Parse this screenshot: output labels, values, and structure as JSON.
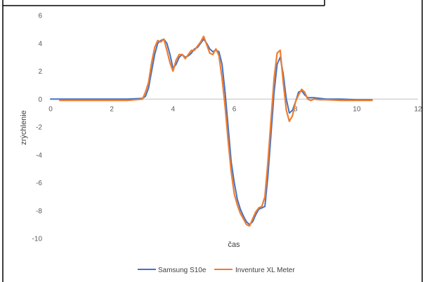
{
  "chart_data": {
    "type": "line",
    "title": "",
    "xlabel": "čas",
    "ylabel": "zrýchlenie",
    "xlim": [
      0,
      12
    ],
    "ylim": [
      -10,
      6
    ],
    "x_ticks": [
      0,
      2,
      4,
      6,
      8,
      10,
      12
    ],
    "y_ticks": [
      6,
      4,
      2,
      0,
      -2,
      -4,
      -6,
      -8,
      -10
    ],
    "grid": false,
    "legend_position": "bottom",
    "colors": {
      "series_1": "#4472c4",
      "series_2": "#ed7d31",
      "axis": "#bfbfbf",
      "frame": "#000000"
    },
    "series": [
      {
        "name": "Samsung S10e",
        "x": [
          0,
          0.5,
          1.0,
          1.5,
          2.0,
          2.5,
          3.0,
          3.1,
          3.2,
          3.3,
          3.4,
          3.5,
          3.6,
          3.7,
          3.8,
          3.9,
          4.0,
          4.1,
          4.2,
          4.3,
          4.4,
          4.5,
          4.6,
          4.7,
          4.8,
          4.9,
          5.0,
          5.1,
          5.2,
          5.3,
          5.4,
          5.5,
          5.6,
          5.7,
          5.8,
          5.9,
          6.0,
          6.1,
          6.2,
          6.3,
          6.4,
          6.5,
          6.6,
          6.7,
          6.8,
          6.9,
          7.0,
          7.1,
          7.2,
          7.3,
          7.4,
          7.5,
          7.6,
          7.7,
          7.8,
          7.9,
          8.0,
          8.1,
          8.2,
          8.3,
          8.4,
          8.5,
          8.6,
          8.8,
          9.0,
          9.5,
          10.0,
          10.5
        ],
        "values": [
          0,
          0,
          0,
          0,
          0,
          0,
          0.05,
          0.2,
          0.8,
          2.0,
          3.2,
          4.0,
          4.2,
          4.3,
          4.0,
          3.2,
          2.2,
          2.5,
          3.0,
          3.2,
          3.0,
          3.1,
          3.3,
          3.6,
          3.7,
          4.0,
          4.3,
          4.0,
          3.6,
          3.4,
          3.5,
          3.4,
          2.5,
          0.5,
          -2.0,
          -4.5,
          -6.0,
          -7.2,
          -7.9,
          -8.4,
          -8.8,
          -9.0,
          -8.8,
          -8.3,
          -7.9,
          -7.8,
          -7.7,
          -5.5,
          -2.5,
          0.5,
          2.5,
          3.0,
          1.8,
          0.0,
          -1.0,
          -0.8,
          -0.2,
          0.5,
          0.6,
          0.3,
          0.1,
          0.1,
          0.1,
          0.05,
          0.0,
          0.0,
          -0.05,
          -0.05
        ]
      },
      {
        "name": "Inventure XL Meter",
        "x": [
          0.3,
          0.5,
          1.0,
          1.5,
          2.0,
          2.5,
          3.0,
          3.1,
          3.2,
          3.3,
          3.4,
          3.5,
          3.6,
          3.7,
          3.8,
          3.9,
          4.0,
          4.1,
          4.2,
          4.3,
          4.4,
          4.5,
          4.6,
          4.7,
          4.8,
          4.9,
          5.0,
          5.1,
          5.2,
          5.3,
          5.4,
          5.5,
          5.6,
          5.7,
          5.8,
          5.9,
          6.0,
          6.1,
          6.2,
          6.3,
          6.4,
          6.5,
          6.6,
          6.7,
          6.8,
          6.9,
          7.0,
          7.1,
          7.2,
          7.3,
          7.4,
          7.5,
          7.6,
          7.7,
          7.8,
          7.9,
          8.0,
          8.1,
          8.2,
          8.3,
          8.4,
          8.5,
          8.6,
          8.8,
          9.0,
          9.5,
          10.0,
          10.5
        ],
        "values": [
          -0.1,
          -0.1,
          -0.1,
          -0.1,
          -0.1,
          -0.1,
          0.0,
          0.5,
          1.2,
          2.6,
          3.7,
          4.2,
          4.1,
          4.3,
          3.5,
          2.6,
          2.0,
          2.8,
          3.2,
          3.2,
          2.9,
          3.2,
          3.5,
          3.5,
          3.8,
          4.1,
          4.5,
          3.9,
          3.3,
          3.2,
          3.6,
          3.1,
          1.5,
          -0.5,
          -3.0,
          -5.2,
          -6.8,
          -7.6,
          -8.2,
          -8.6,
          -9.0,
          -9.1,
          -8.6,
          -8.1,
          -7.8,
          -7.7,
          -7.0,
          -4.5,
          -1.5,
          1.5,
          3.3,
          3.5,
          1.2,
          -0.8,
          -1.6,
          -1.2,
          -0.2,
          0.3,
          0.7,
          0.5,
          0.0,
          -0.1,
          0.0,
          -0.05,
          -0.05,
          -0.1,
          -0.1,
          -0.1
        ]
      }
    ]
  }
}
